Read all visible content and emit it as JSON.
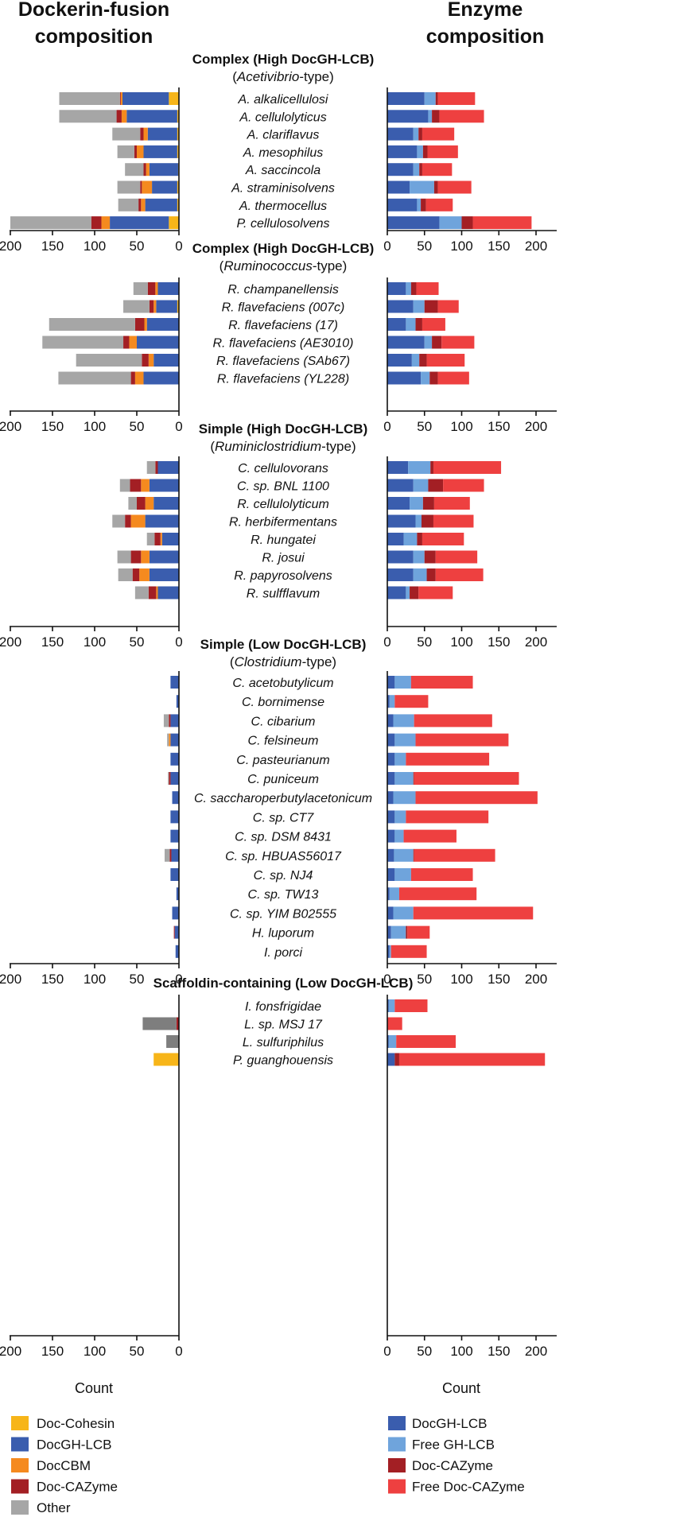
{
  "headers": {
    "left": [
      "Dockerin-fusion",
      "composition"
    ],
    "right": [
      "Enzyme",
      "composition"
    ]
  },
  "colors": {
    "doc_cohesin": "#F7B519",
    "docgh_lcb": "#3A5DAE",
    "doccbm": "#F58A1F",
    "doc_cazyme": "#A31F24",
    "other": "#A6A6A6",
    "free_gh_lcb": "#6FA4DC",
    "free_doc_cazyme": "#EE4040",
    "scaffoldin_other": "#7E7E7E"
  },
  "legend_left": [
    {
      "key": "doc_cohesin",
      "label": "Doc-Cohesin"
    },
    {
      "key": "docgh_lcb",
      "label": "DocGH-LCB"
    },
    {
      "key": "doccbm",
      "label": "DocCBM"
    },
    {
      "key": "doc_cazyme",
      "label": "Doc-CAZyme"
    },
    {
      "key": "other",
      "label": "Other"
    }
  ],
  "legend_right": [
    {
      "key": "docgh_lcb",
      "label": "DocGH-LCB"
    },
    {
      "key": "free_gh_lcb",
      "label": "Free GH-LCB"
    },
    {
      "key": "doc_cazyme",
      "label": "Doc-CAZyme"
    },
    {
      "key": "free_doc_cazyme",
      "label": "Free Doc-CAZyme"
    }
  ],
  "chart_data": {
    "type": "bar",
    "orientation": "horizontal",
    "xlabel_left": "Count",
    "xlabel_right": "Count",
    "left_axis": {
      "range": [
        200,
        0
      ],
      "ticks": [
        200,
        150,
        100,
        50,
        0
      ],
      "direction": "right-to-left"
    },
    "right_axis": {
      "range": [
        0,
        220
      ],
      "ticks": [
        0,
        50,
        100,
        150,
        200
      ]
    },
    "left_stack_order": [
      "doc_cohesin",
      "docgh_lcb",
      "doccbm",
      "doc_cazyme",
      "other"
    ],
    "right_stack_order": [
      "docgh_lcb",
      "free_gh_lcb",
      "doc_cazyme",
      "free_doc_cazyme"
    ],
    "groups": [
      {
        "title": "Complex (High DocGH-LCB)",
        "subtitle_italic": "Acetivibrio",
        "subtitle_rest": "-type)",
        "show_axes": true,
        "species": [
          {
            "name": "A. alkalicellulosi",
            "left": [
              12,
              55,
              2,
              1,
              72
            ],
            "right": [
              50,
              15,
              3,
              50
            ]
          },
          {
            "name": "A. cellulolyticus",
            "left": [
              2,
              60,
              6,
              6,
              68
            ],
            "right": [
              55,
              5,
              10,
              60
            ]
          },
          {
            "name": "A. clariflavus",
            "left": [
              2,
              35,
              5,
              4,
              33
            ],
            "right": [
              35,
              7,
              5,
              43
            ]
          },
          {
            "name": "A. mesophilus",
            "left": [
              2,
              40,
              8,
              3,
              20
            ],
            "right": [
              40,
              8,
              6,
              41
            ]
          },
          {
            "name": "A. saccincola",
            "left": [
              1,
              34,
              4,
              3,
              22
            ],
            "right": [
              35,
              8,
              4,
              40
            ]
          },
          {
            "name": "A. straminisolvens",
            "left": [
              2,
              30,
              12,
              2,
              27
            ],
            "right": [
              30,
              33,
              5,
              45
            ]
          },
          {
            "name": "A. thermocellus",
            "left": [
              2,
              38,
              5,
              3,
              24
            ],
            "right": [
              40,
              5,
              7,
              36
            ]
          },
          {
            "name": "P. cellulosolvens",
            "left": [
              12,
              70,
              10,
              12,
              96
            ],
            "right": [
              70,
              30,
              15,
              79
            ]
          }
        ]
      },
      {
        "title": "Complex (High DocGH-LCB)",
        "subtitle_italic": "Ruminococcus",
        "subtitle_rest": "-type)",
        "show_axes": true,
        "species": [
          {
            "name": "R. champanellensis",
            "left": [
              0,
              25,
              3,
              9,
              17
            ],
            "right": [
              25,
              7,
              7,
              30
            ]
          },
          {
            "name": "R. flavefaciens (007c)",
            "left": [
              2,
              25,
              3,
              5,
              31
            ],
            "right": [
              35,
              15,
              18,
              28
            ]
          },
          {
            "name": "R. flavefaciens (17)",
            "left": [
              0,
              38,
              3,
              11,
              102
            ],
            "right": [
              25,
              13,
              9,
              31
            ]
          },
          {
            "name": "R. flavefaciens (AE3010)",
            "left": [
              0,
              50,
              9,
              7,
              96
            ],
            "right": [
              50,
              10,
              13,
              44
            ]
          },
          {
            "name": "R. flavefaciens (SAb67)",
            "left": [
              0,
              30,
              6,
              8,
              78
            ],
            "right": [
              33,
              10,
              10,
              51
            ]
          },
          {
            "name": "R. flavefaciens (YL228)",
            "left": [
              0,
              42,
              10,
              5,
              86
            ],
            "right": [
              45,
              12,
              11,
              42
            ]
          }
        ]
      },
      {
        "title": "Simple (High DocGH-LCB)",
        "subtitle_italic": "Ruminiclostridium",
        "subtitle_rest": "-type)",
        "show_axes": true,
        "species": [
          {
            "name": "C. cellulovorans",
            "left": [
              0,
              25,
              0,
              3,
              10
            ],
            "right": [
              28,
              30,
              4,
              91
            ]
          },
          {
            "name": "C. sp. BNL 1100",
            "left": [
              0,
              35,
              10,
              13,
              12
            ],
            "right": [
              35,
              20,
              20,
              55
            ]
          },
          {
            "name": "R. cellulolyticum",
            "left": [
              0,
              30,
              10,
              10,
              10
            ],
            "right": [
              30,
              18,
              15,
              48
            ]
          },
          {
            "name": "R. herbifermentans",
            "left": [
              0,
              40,
              17,
              7,
              15
            ],
            "right": [
              38,
              8,
              16,
              54
            ]
          },
          {
            "name": "R. hungatei",
            "left": [
              0,
              20,
              2,
              7,
              9
            ],
            "right": [
              22,
              18,
              7,
              56
            ]
          },
          {
            "name": "R. josui",
            "left": [
              0,
              35,
              10,
              12,
              16
            ],
            "right": [
              35,
              15,
              15,
              56
            ]
          },
          {
            "name": "R. papyrosolvens",
            "left": [
              0,
              35,
              12,
              8,
              17
            ],
            "right": [
              35,
              18,
              12,
              64
            ]
          },
          {
            "name": "R. sulfflavum",
            "left": [
              0,
              25,
              2,
              9,
              16
            ],
            "right": [
              25,
              5,
              12,
              46
            ]
          }
        ]
      },
      {
        "title": "Simple (Low DocGH-LCB)",
        "subtitle_italic": "Clostridium",
        "subtitle_rest": "-type)",
        "show_axes": true,
        "species": [
          {
            "name": "C. acetobutylicum",
            "left": [
              0,
              10,
              0,
              0,
              0
            ],
            "right": [
              10,
              22,
              0,
              83
            ]
          },
          {
            "name": "C. bornimense",
            "left": [
              0,
              3,
              0,
              0,
              0
            ],
            "right": [
              3,
              7,
              0,
              45
            ]
          },
          {
            "name": "C. cibarium",
            "left": [
              0,
              10,
              0,
              2,
              6
            ],
            "right": [
              8,
              28,
              0,
              105
            ]
          },
          {
            "name": "C. felsineum",
            "left": [
              0,
              10,
              2,
              0,
              2
            ],
            "right": [
              10,
              28,
              0,
              125
            ]
          },
          {
            "name": "C. pasteurianum",
            "left": [
              0,
              10,
              0,
              0,
              0
            ],
            "right": [
              10,
              15,
              0,
              112
            ]
          },
          {
            "name": "C. puniceum",
            "left": [
              0,
              10,
              0,
              2,
              1
            ],
            "right": [
              10,
              25,
              1,
              141
            ]
          },
          {
            "name": "C. saccharoperbutylacetonicum",
            "left": [
              0,
              8,
              0,
              0,
              0
            ],
            "right": [
              8,
              30,
              0,
              164
            ]
          },
          {
            "name": "C. sp. CT7",
            "left": [
              0,
              10,
              0,
              0,
              0
            ],
            "right": [
              10,
              15,
              0,
              111
            ]
          },
          {
            "name": "C. sp. DSM 8431",
            "left": [
              0,
              10,
              0,
              0,
              0
            ],
            "right": [
              10,
              12,
              0,
              71
            ]
          },
          {
            "name": "C. sp. HBUAS56017",
            "left": [
              0,
              9,
              0,
              2,
              6
            ],
            "right": [
              9,
              26,
              1,
              109
            ]
          },
          {
            "name": "C. sp. NJ4",
            "left": [
              0,
              10,
              0,
              0,
              0
            ],
            "right": [
              10,
              22,
              0,
              83
            ]
          },
          {
            "name": "C. sp. TW13",
            "left": [
              0,
              3,
              0,
              0,
              0
            ],
            "right": [
              3,
              13,
              0,
              104
            ]
          },
          {
            "name": "C. sp. YIM B02555",
            "left": [
              0,
              8,
              0,
              0,
              0
            ],
            "right": [
              8,
              27,
              0,
              161
            ]
          },
          {
            "name": "H. luporum",
            "left": [
              0,
              5,
              0,
              1,
              0
            ],
            "right": [
              5,
              20,
              2,
              30
            ]
          },
          {
            "name": "I. porci",
            "left": [
              0,
              4,
              0,
              0,
              0
            ],
            "right": [
              3,
              2,
              0,
              48
            ]
          }
        ]
      },
      {
        "title": "Scaffoldin-containing (Low DocGH-LCB)",
        "subtitle_italic": "",
        "subtitle_rest": "",
        "show_axes": true,
        "species": [
          {
            "name": "I. fonsfrigidae",
            "left": [
              0,
              0,
              0,
              0,
              0
            ],
            "right": [
              2,
              8,
              0,
              44
            ]
          },
          {
            "name": "L. sp. MSJ 17",
            "left": [
              0,
              0,
              0,
              0,
              0
            ],
            "right": [
              0,
              0,
              0,
              20
            ]
          },
          {
            "name": "L. sulfuriphilus",
            "left": [
              0,
              0,
              0,
              0,
              0
            ],
            "right": [
              2,
              10,
              0,
              80
            ]
          },
          {
            "name": "P. guanghouensis",
            "left": [
              30,
              0,
              0,
              0,
              0
            ],
            "right": [
              10,
              0,
              6,
              196
            ]
          }
        ]
      }
    ]
  },
  "scaffoldin_left_other": [
    0,
    40,
    15,
    0
  ],
  "scaffoldin_left_caz": [
    0,
    3,
    0,
    0
  ]
}
